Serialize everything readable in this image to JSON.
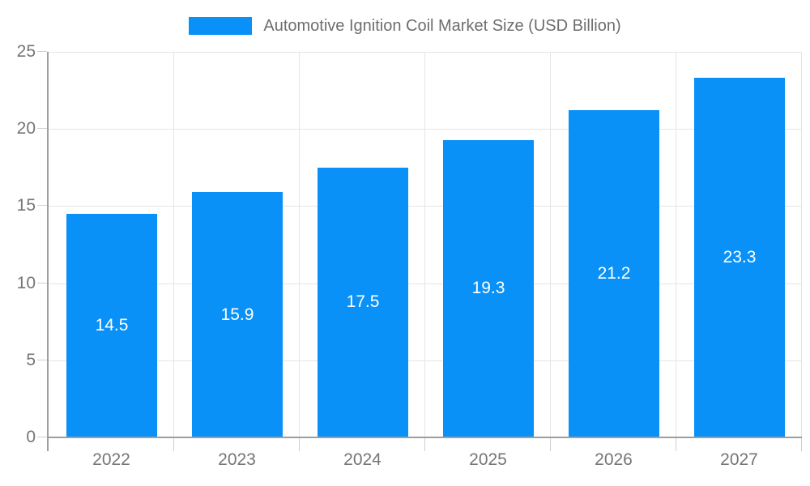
{
  "chart_data": {
    "type": "bar",
    "title": "Automotive Ignition Coil Market Size (USD Billion)",
    "legend_position": "top",
    "categories": [
      "2022",
      "2023",
      "2024",
      "2025",
      "2026",
      "2027"
    ],
    "values": [
      14.5,
      15.9,
      17.5,
      19.3,
      21.2,
      23.3
    ],
    "value_labels": [
      "14.5",
      "15.9",
      "17.5",
      "19.3",
      "21.2",
      "23.3"
    ],
    "xlabel": "",
    "ylabel": "",
    "ylim": [
      0,
      25
    ],
    "ytick_step": 5,
    "ytick_labels": [
      "0",
      "5",
      "10",
      "15",
      "20",
      "25"
    ],
    "grid": true,
    "colors": {
      "bar": "#0991f7",
      "grid": "#e5e5e5",
      "axis": "#9e9e9e",
      "tick": "#cfcfcf",
      "text": "#757575",
      "value_label": "#ffffff",
      "background": "#ffffff"
    }
  }
}
